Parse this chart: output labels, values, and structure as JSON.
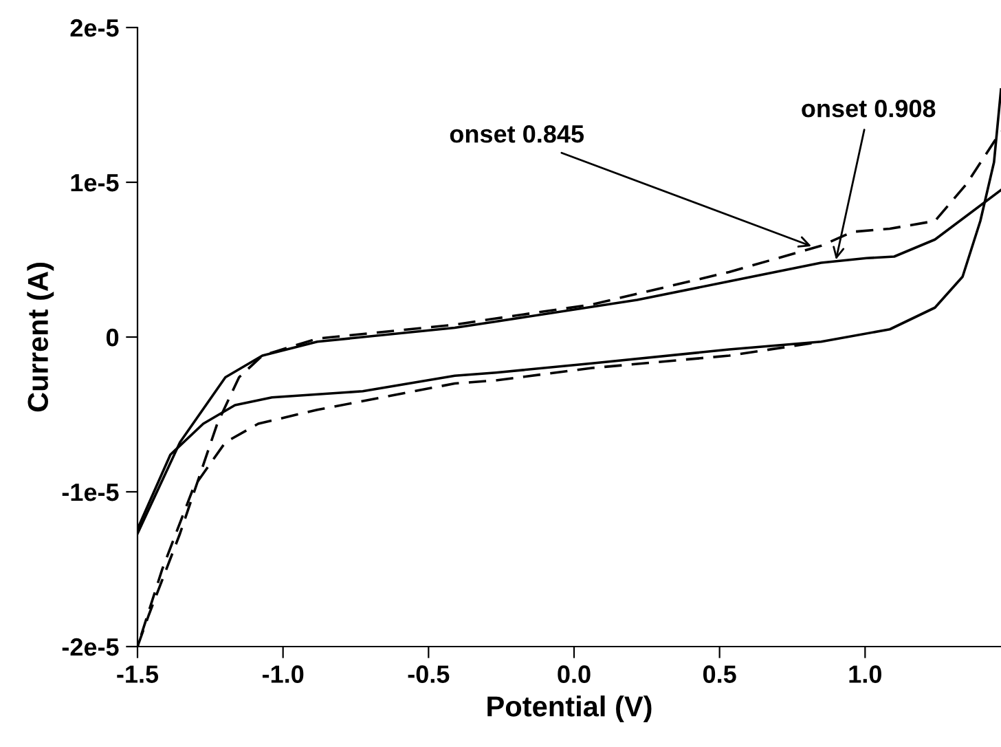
{
  "chart_data": {
    "type": "line",
    "xlabel": "Potential (V)",
    "ylabel": "Current (A)",
    "xlim": [
      -1.5,
      1.467
    ],
    "ylim": [
      -2e-05,
      2e-05
    ],
    "xticks": [
      {
        "value": -1.5,
        "label": "-1.5"
      },
      {
        "value": -1.0,
        "label": "-1.0"
      },
      {
        "value": -0.5,
        "label": "-0.5"
      },
      {
        "value": 0.0,
        "label": "0.0"
      },
      {
        "value": 0.5,
        "label": "0.5"
      },
      {
        "value": 1.0,
        "label": "1.0"
      }
    ],
    "yticks": [
      {
        "value": -2e-05,
        "label": "-2e-5"
      },
      {
        "value": -1e-05,
        "label": "-1e-5"
      },
      {
        "value": 0,
        "label": "0"
      },
      {
        "value": 1e-05,
        "label": "1e-5"
      },
      {
        "value": 2e-05,
        "label": "2e-5"
      }
    ],
    "grid": false,
    "legend": false,
    "marker": "none",
    "series": [
      {
        "color": "#000000",
        "line_style": "solid",
        "x": [
          -1.5,
          -1.354,
          -1.198,
          -1.071,
          -0.882,
          -0.41,
          -0.269,
          0.217,
          0.533,
          0.849,
          1.005,
          1.1,
          1.24,
          1.467
        ],
        "values": [
          -1.27e-05,
          -6.8e-06,
          -2.6e-06,
          -1.2e-06,
          -3e-07,
          6e-07,
          1e-06,
          2.4e-06,
          3.6e-06,
          4.8e-06,
          5.1e-06,
          5.2e-06,
          6.3e-06,
          9.5e-06
        ]
      },
      {
        "color": "#000000",
        "line_style": "solid",
        "x": [
          1.467,
          1.443,
          1.396,
          1.335,
          1.24,
          1.085,
          0.849,
          0.533,
          0.061,
          -0.269,
          -0.41,
          -0.726,
          -1.038,
          -1.165,
          -1.274,
          -1.387,
          -1.5
        ],
        "values": [
          1.6e-05,
          1.13e-05,
          7.5e-06,
          3.9e-06,
          1.9e-06,
          5e-07,
          -3e-07,
          -8e-07,
          -1.7e-06,
          -2.3e-06,
          -2.5e-06,
          -3.5e-06,
          -3.9e-06,
          -4.4e-06,
          -5.6e-06,
          -7.6e-06,
          -1.24e-05
        ]
      },
      {
        "color": "#000000",
        "line_style": "dashed",
        "x": [
          -1.5,
          -1.462,
          -1.354,
          -1.226,
          -1.151,
          -1.071,
          -0.882,
          -0.41,
          -0.269,
          0.061,
          0.533,
          0.849,
          0.958,
          1.085,
          1.24,
          1.349,
          1.467
        ],
        "values": [
          -2e-05,
          -1.8e-05,
          -1.27e-05,
          -5.6e-06,
          -2.6e-06,
          -1.2e-06,
          -1e-07,
          8e-07,
          1.2e-06,
          2.1e-06,
          4.2e-06,
          5.9e-06,
          6.8e-06,
          7e-06,
          7.5e-06,
          9.9e-06,
          1.33e-05
        ]
      },
      {
        "color": "#000000",
        "line_style": "dashed",
        "x": [
          0.816,
          0.533,
          0.061,
          -0.269,
          -0.41,
          -0.882,
          -1.085,
          -1.198,
          -1.307,
          -1.415,
          -1.5
        ],
        "values": [
          -4e-07,
          -1.2e-06,
          -2e-06,
          -2.8e-06,
          -3e-06,
          -4.7e-06,
          -5.6e-06,
          -6.8e-06,
          -9.7e-06,
          -1.5e-05,
          -2e-05
        ]
      }
    ],
    "annotations": [
      {
        "text": "onset 0.845",
        "x": 0.84,
        "y": 5.7e-06
      },
      {
        "text": "onset 0.908",
        "x": 0.9,
        "y": 5e-06
      }
    ]
  }
}
